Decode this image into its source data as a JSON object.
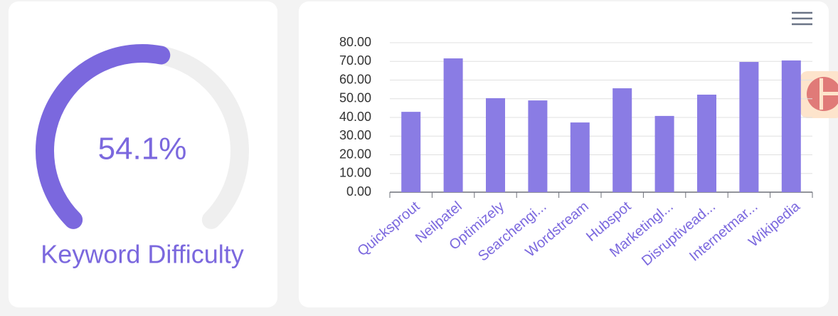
{
  "chart_data": [
    {
      "type": "gauge",
      "title": "Keyword Difficulty",
      "value": 54.1,
      "value_label": "54.1%",
      "ylim": [
        0,
        100
      ],
      "color": "#7b68de"
    },
    {
      "type": "bar",
      "categories": [
        "Quicksprout",
        "Neilpatel",
        "Optimizely",
        "Searchengi...",
        "Wordstream",
        "Hubspot",
        "Marketingl...",
        "Disruptivead...",
        "Internetmar...",
        "Wikipedia"
      ],
      "values": [
        43.0,
        71.6,
        50.3,
        49.1,
        37.3,
        55.6,
        40.8,
        52.2,
        69.7,
        70.5
      ],
      "color": "#8a7ce4",
      "ylim": [
        0,
        80
      ],
      "yticks": [
        {
          "value": 0,
          "label": "0.00"
        },
        {
          "value": 10,
          "label": "10.00"
        },
        {
          "value": 20,
          "label": "20.00"
        },
        {
          "value": 30,
          "label": "30.00"
        },
        {
          "value": 40,
          "label": "40.00"
        },
        {
          "value": 50,
          "label": "50.00"
        },
        {
          "value": 60,
          "label": "60.00"
        },
        {
          "value": 70,
          "label": "70.00"
        },
        {
          "value": 80,
          "label": "80.00"
        }
      ],
      "grid": true
    }
  ]
}
